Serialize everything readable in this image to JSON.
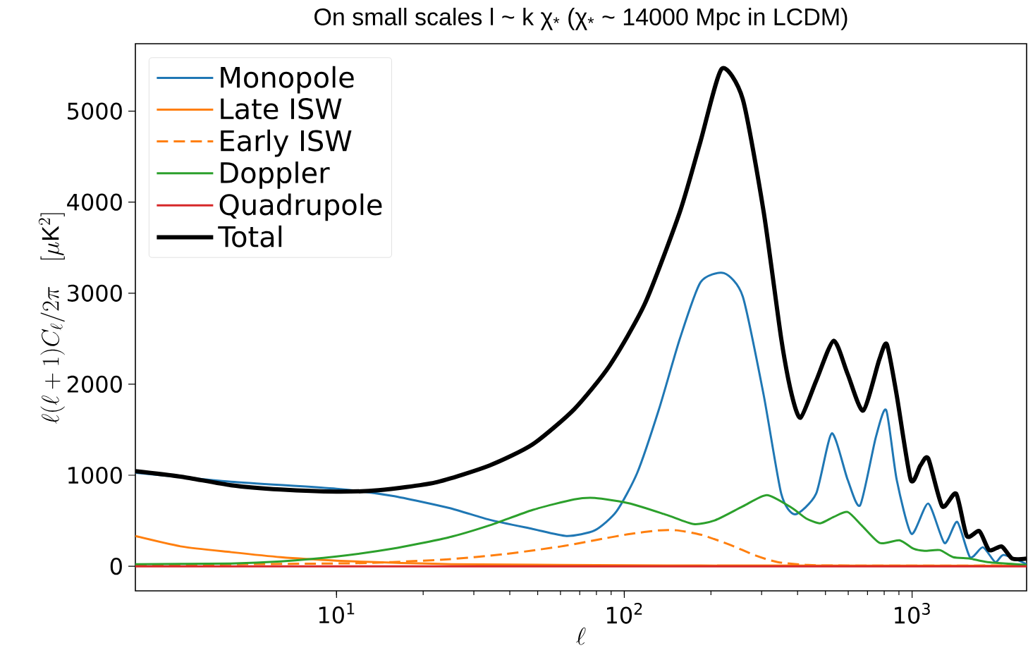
{
  "chart_data": {
    "type": "line",
    "title": "On small scales l ~ k χ$_{*}$ (χ$_{*}$ ~ 14000 Mpc in LCDM)",
    "xlabel": "\\ell",
    "ylabel": "\\ell(\\ell+1)C_\\ell/2\\pi\\quad[\\mu\\mathrm{K}^2]",
    "log": "x",
    "legend": "top left",
    "xlim": [
      2,
      2500
    ],
    "ylim": [
      -270,
      5740
    ],
    "xticks": [
      {
        "value": 10,
        "label": "10$^{1}$"
      },
      {
        "value": 100,
        "label": "10$^{2}$"
      },
      {
        "value": 1000,
        "label": "10$^{3}$"
      }
    ],
    "yticks": [
      0,
      1000,
      2000,
      3000,
      4000,
      5000
    ],
    "series": [
      {
        "name": "Monopole",
        "color": "#1f77b4",
        "line_style": "solid",
        "x": [
          2,
          4.3,
          10,
          15.6,
          24.5,
          34,
          48,
          63,
          79,
          94,
          111,
          132,
          156,
          184,
          222,
          258,
          305,
          351,
          392,
          464,
          526,
          597,
          660,
          748,
          813,
          884,
          995,
          1138,
          1296,
          1435,
          1590,
          1762,
          1946,
          2084,
          2500
        ],
        "values": [
          1028,
          929,
          851,
          774,
          642,
          511,
          410,
          333,
          395,
          604,
          1029,
          1726,
          2500,
          3119,
          3220,
          2964,
          1881,
          797,
          570,
          797,
          1460,
          952,
          670,
          1416,
          1715,
          952,
          356,
          689,
          255,
          488,
          100,
          209,
          46,
          124,
          23
        ]
      },
      {
        "name": "Late ISW",
        "color": "#ff7f0e",
        "line_style": "solid",
        "x": [
          2,
          2.9,
          4.3,
          6.4,
          10,
          15.6,
          25,
          60,
          184,
          2500
        ],
        "values": [
          333,
          217,
          155,
          100,
          62,
          39,
          23,
          15,
          8,
          5
        ]
      },
      {
        "name": "Early ISW",
        "color": "#ff7f0e",
        "line_style": "dashed",
        "x": [
          2,
          10,
          15.6,
          24.5,
          38,
          60,
          84,
          105,
          132,
          152,
          184,
          231,
          287,
          341,
          428,
          550,
          2500
        ],
        "values": [
          15,
          31,
          46,
          77,
          132,
          217,
          302,
          356,
          395,
          395,
          348,
          240,
          116,
          46,
          15,
          8,
          8
        ]
      },
      {
        "name": "Doppler",
        "color": "#2ca02c",
        "line_style": "solid",
        "x": [
          2,
          4.3,
          6.4,
          10,
          15.6,
          24.5,
          34,
          48,
          67,
          79,
          105,
          140,
          174,
          206,
          258,
          313,
          382,
          428,
          479,
          534,
          597,
          668,
          773,
          904,
          1011,
          1105,
          1248,
          1390,
          1590,
          1830,
          2500
        ],
        "values": [
          23,
          31,
          54,
          108,
          193,
          317,
          449,
          619,
          735,
          751,
          689,
          565,
          464,
          503,
          658,
          782,
          642,
          526,
          472,
          542,
          596,
          449,
          255,
          286,
          193,
          170,
          178,
          100,
          85,
          46,
          15
        ]
      },
      {
        "name": "Quadrupole",
        "color": "#d62728",
        "line_style": "solid",
        "x": [
          2,
          2500
        ],
        "values": [
          0,
          0
        ]
      },
      {
        "name": "Total",
        "color": "#000000",
        "line_style": "solid",
        "x": [
          2,
          2.9,
          4.3,
          6.4,
          10,
          14,
          22,
          34,
          48,
          67,
          89,
          118,
          156,
          184,
          218,
          258,
          305,
          351,
          382,
          410,
          464,
          534,
          597,
          676,
          769,
          817,
          884,
          989,
          1069,
          1138,
          1273,
          1423,
          1549,
          1713,
          1852,
          2048,
          2227,
          2500
        ],
        "values": [
          1045,
          983,
          890,
          843,
          820,
          836,
          920,
          1107,
          1339,
          1726,
          2206,
          2887,
          3893,
          4667,
          5464,
          5131,
          3893,
          2500,
          1881,
          1633,
          2036,
          2477,
          2113,
          1710,
          2268,
          2438,
          1881,
          952,
          1107,
          1184,
          658,
          797,
          333,
          387,
          178,
          217,
          85,
          85
        ]
      }
    ]
  }
}
